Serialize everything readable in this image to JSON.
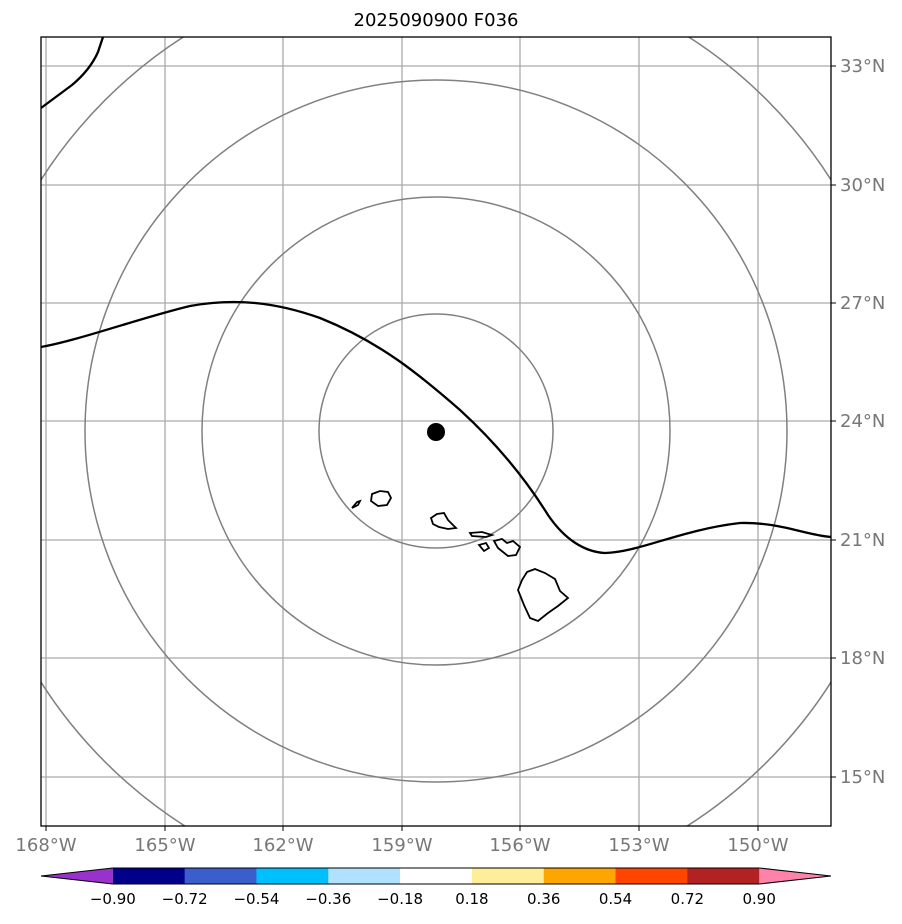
{
  "map": {
    "title": "2025090900 F036",
    "lat_labels": [
      "33°N",
      "30°N",
      "27°N",
      "24°N",
      "21°N",
      "18°N",
      "15°N"
    ],
    "lon_labels": [
      "168°W",
      "165°W",
      "162°W",
      "159°W",
      "156°W",
      "153°W",
      "150°W"
    ],
    "range_rings": 4,
    "center_marker": {
      "lat": 23.7,
      "lon": "157.9°W"
    },
    "colors": {
      "grid": "#aaaaaa",
      "ring": "#808080",
      "contour": "#000000",
      "frame": "#000000"
    }
  },
  "colorbar": {
    "labels": [
      "−0.90",
      "−0.72",
      "−0.54",
      "−0.36",
      "−0.18",
      "0.18",
      "0.36",
      "0.54",
      "0.72",
      "0.90"
    ],
    "colors": [
      "#9932cc",
      "#00008b",
      "#3a5fcd",
      "#00bfff",
      "#b0e2ff",
      "#ffffff",
      "#ffee99",
      "#ffa500",
      "#ff4500",
      "#b22222",
      "#ff82ab"
    ]
  }
}
